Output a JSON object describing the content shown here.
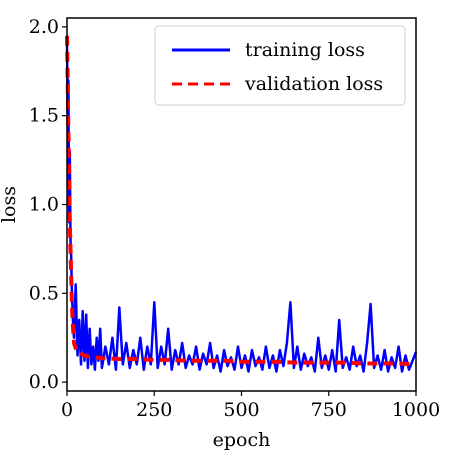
{
  "chart_data": {
    "type": "line",
    "xlabel": "epoch",
    "ylabel": "loss",
    "xlim": [
      0,
      1000
    ],
    "ylim": [
      -0.05,
      2.05
    ],
    "xticks": [
      0,
      250,
      500,
      750,
      1000
    ],
    "xtick_labels": [
      "0",
      "250",
      "500",
      "750",
      "1000"
    ],
    "yticks": [
      0.0,
      0.5,
      1.0,
      1.5,
      2.0
    ],
    "ytick_labels": [
      "0.0",
      "0.5",
      "1.0",
      "1.5",
      "2.0"
    ],
    "grid": false,
    "legend_position": "top-right",
    "series": [
      {
        "name": "training loss",
        "color": "#0000ff",
        "style": "solid",
        "x": [
          0,
          2,
          4,
          6,
          8,
          10,
          12,
          14,
          16,
          18,
          20,
          25,
          30,
          35,
          40,
          45,
          50,
          55,
          60,
          65,
          70,
          75,
          80,
          85,
          90,
          95,
          100,
          110,
          120,
          130,
          140,
          150,
          160,
          170,
          180,
          190,
          200,
          210,
          220,
          230,
          240,
          250,
          260,
          270,
          280,
          290,
          300,
          310,
          320,
          330,
          340,
          350,
          360,
          370,
          380,
          390,
          400,
          410,
          420,
          430,
          440,
          450,
          460,
          470,
          480,
          490,
          500,
          510,
          520,
          530,
          540,
          550,
          560,
          570,
          580,
          590,
          600,
          610,
          620,
          630,
          640,
          650,
          660,
          670,
          680,
          690,
          700,
          710,
          720,
          730,
          740,
          750,
          760,
          770,
          780,
          790,
          800,
          810,
          820,
          830,
          840,
          850,
          860,
          870,
          880,
          890,
          900,
          910,
          920,
          930,
          940,
          950,
          960,
          970,
          980,
          990,
          1000
        ],
        "values": [
          1.9,
          1.5,
          1.7,
          0.9,
          1.3,
          0.8,
          0.7,
          0.5,
          0.4,
          0.3,
          0.25,
          0.55,
          0.15,
          0.35,
          0.1,
          0.4,
          0.12,
          0.38,
          0.08,
          0.3,
          0.1,
          0.2,
          0.07,
          0.25,
          0.12,
          0.3,
          0.08,
          0.2,
          0.1,
          0.25,
          0.07,
          0.42,
          0.1,
          0.22,
          0.08,
          0.18,
          0.1,
          0.25,
          0.07,
          0.2,
          0.1,
          0.45,
          0.08,
          0.2,
          0.1,
          0.3,
          0.07,
          0.18,
          0.1,
          0.22,
          0.08,
          0.15,
          0.1,
          0.2,
          0.07,
          0.16,
          0.1,
          0.22,
          0.08,
          0.15,
          0.06,
          0.18,
          0.09,
          0.14,
          0.07,
          0.2,
          0.08,
          0.15,
          0.06,
          0.18,
          0.09,
          0.14,
          0.07,
          0.2,
          0.08,
          0.15,
          0.06,
          0.18,
          0.09,
          0.22,
          0.45,
          0.08,
          0.2,
          0.07,
          0.16,
          0.09,
          0.14,
          0.06,
          0.25,
          0.08,
          0.15,
          0.07,
          0.18,
          0.06,
          0.35,
          0.08,
          0.14,
          0.07,
          0.2,
          0.09,
          0.15,
          0.06,
          0.22,
          0.44,
          0.08,
          0.15,
          0.07,
          0.18,
          0.06,
          0.14,
          0.08,
          0.2,
          0.06,
          0.15,
          0.07,
          0.12,
          0.17
        ]
      },
      {
        "name": "validation loss",
        "color": "#ff0000",
        "style": "dashed",
        "x": [
          0,
          2,
          4,
          6,
          8,
          10,
          12,
          14,
          16,
          18,
          20,
          25,
          30,
          40,
          50,
          60,
          80,
          100,
          150,
          200,
          250,
          300,
          350,
          400,
          450,
          500,
          550,
          600,
          650,
          700,
          750,
          800,
          850,
          900,
          950,
          1000
        ],
        "values": [
          1.95,
          1.7,
          1.4,
          1.1,
          0.9,
          0.75,
          0.6,
          0.45,
          0.35,
          0.28,
          0.22,
          0.19,
          0.17,
          0.16,
          0.15,
          0.145,
          0.14,
          0.135,
          0.13,
          0.13,
          0.125,
          0.125,
          0.12,
          0.12,
          0.12,
          0.115,
          0.115,
          0.115,
          0.11,
          0.11,
          0.11,
          0.11,
          0.105,
          0.105,
          0.105,
          0.1
        ]
      }
    ]
  }
}
